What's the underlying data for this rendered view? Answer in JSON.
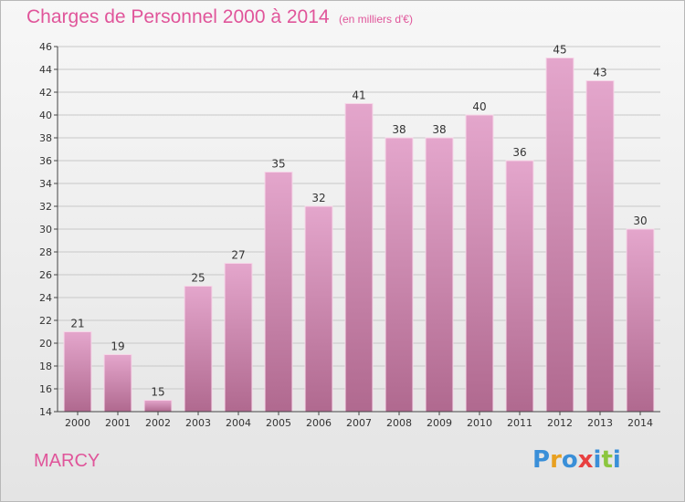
{
  "title": "Charges de Personnel 2000 à 2014",
  "subtitle": "(en milliers d'€)",
  "commune": "MARCY",
  "logo": {
    "text": "Proxiti",
    "colors": [
      "#3a8fd8",
      "#e8a020",
      "#3a8fd8",
      "#e84040",
      "#3a8fd8",
      "#8cc63f",
      "#3a8fd8"
    ]
  },
  "colors": {
    "accent": "#e0559a",
    "bar_top": "#e4a6cc",
    "bar_bottom": "#b0698f"
  },
  "chart_data": {
    "type": "bar",
    "categories": [
      "2000",
      "2001",
      "2002",
      "2003",
      "2004",
      "2005",
      "2006",
      "2007",
      "2008",
      "2009",
      "2010",
      "2011",
      "2012",
      "2013",
      "2014"
    ],
    "values": [
      21,
      19,
      15,
      25,
      27,
      35,
      32,
      41,
      38,
      38,
      40,
      36,
      45,
      43,
      30
    ],
    "ylim": [
      14,
      46
    ],
    "yticks": [
      14,
      16,
      18,
      20,
      22,
      24,
      26,
      28,
      30,
      32,
      34,
      36,
      38,
      40,
      42,
      44,
      46
    ],
    "xlabel": "",
    "ylabel": "",
    "grid": true
  }
}
